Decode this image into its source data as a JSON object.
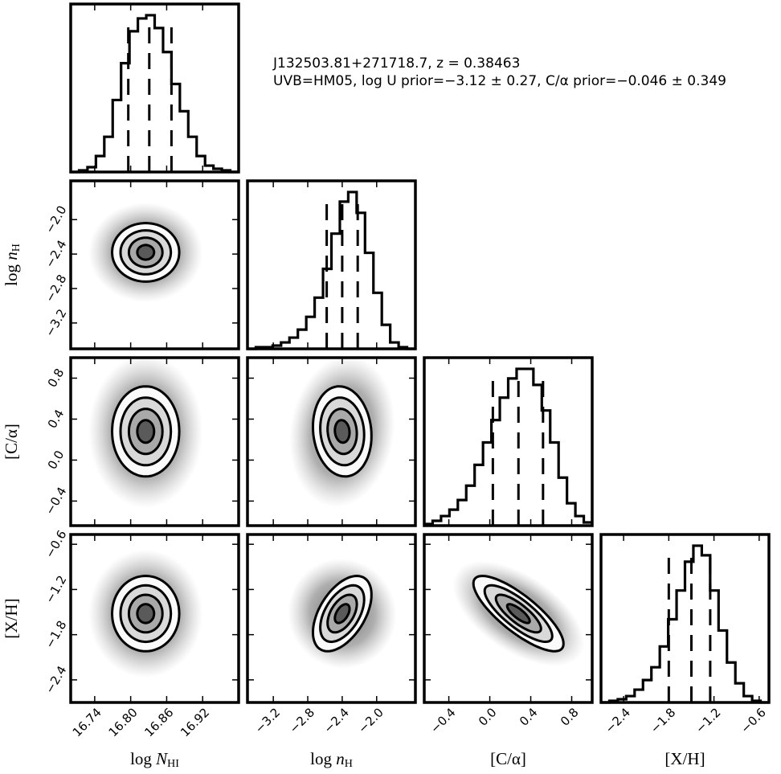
{
  "chart_data": {
    "type": "corner",
    "title_lines": [
      "J132503.81+271718.7, z = 0.38463",
      "UVB=HM05, log U prior=−3.12 ± 0.27, C/α prior=−0.046 ± 0.349"
    ],
    "variables": [
      {
        "label": {
          "prefix": "log ",
          "symbol": "N",
          "sub": "HI"
        },
        "lim": [
          16.7,
          16.98
        ],
        "ticks": [
          {
            "value": 16.74,
            "label": "16.74"
          },
          {
            "value": 16.8,
            "label": "16.80"
          },
          {
            "value": 16.86,
            "label": "16.86"
          },
          {
            "value": 16.92,
            "label": "16.92"
          }
        ],
        "hist": [
          0,
          1,
          3,
          10,
          22,
          45,
          68,
          88,
          96,
          98,
          90,
          75,
          55,
          38,
          22,
          10,
          4,
          2,
          1,
          0
        ],
        "quantiles": [
          16.796,
          16.831,
          16.868
        ]
      },
      {
        "label": {
          "prefix": "log ",
          "symbol": "n",
          "sub": "H"
        },
        "lim": [
          -3.5,
          -1.55
        ],
        "ticks": [
          {
            "value": -3.2,
            "label": "−3.2"
          },
          {
            "value": -2.8,
            "label": "−2.8"
          },
          {
            "value": -2.4,
            "label": "−2.4"
          },
          {
            "value": -2.0,
            "label": "−2.0"
          }
        ],
        "hist": [
          0,
          1,
          1,
          2,
          4,
          7,
          12,
          20,
          32,
          50,
          72,
          92,
          98,
          85,
          60,
          35,
          15,
          4,
          1,
          0
        ],
        "quantiles": [
          -2.58,
          -2.4,
          -2.22
        ]
      },
      {
        "label": {
          "prefix": "[C/α]",
          "symbol": "",
          "sub": ""
        },
        "lim": [
          -0.64,
          1.0
        ],
        "ticks": [
          {
            "value": -0.4,
            "label": "−0.4"
          },
          {
            "value": 0.0,
            "label": "0.0"
          },
          {
            "value": 0.4,
            "label": "0.4"
          },
          {
            "value": 0.8,
            "label": "0.8"
          }
        ],
        "hist": [
          1,
          3,
          6,
          10,
          16,
          25,
          38,
          52,
          66,
          80,
          92,
          98,
          98,
          88,
          72,
          52,
          30,
          14,
          6,
          2
        ],
        "quantiles": [
          0.03,
          0.28,
          0.52
        ]
      },
      {
        "label": {
          "prefix": "[X/H]",
          "symbol": "",
          "sub": ""
        },
        "lim": [
          -2.7,
          -0.47
        ],
        "ticks": [
          {
            "value": -2.4,
            "label": "−2.4"
          },
          {
            "value": -1.8,
            "label": "−1.8"
          },
          {
            "value": -1.2,
            "label": "−1.2"
          },
          {
            "value": -0.6,
            "label": "−0.6"
          }
        ],
        "hist": [
          0,
          1,
          2,
          4,
          8,
          14,
          22,
          35,
          52,
          70,
          88,
          98,
          92,
          70,
          45,
          25,
          12,
          4,
          1,
          0
        ],
        "quantiles": [
          -1.8,
          -1.5,
          -1.25
        ]
      }
    ],
    "hist_ylim": [
      0,
      105
    ],
    "contour_levels": [
      0.5,
      1,
      1.5,
      2
    ],
    "pairs": [
      {
        "x": 0,
        "y": 1,
        "center": [
          16.825,
          -2.38
        ],
        "sigma": [
          0.028,
          0.17
        ],
        "corr": 0
      },
      {
        "x": 0,
        "y": 2,
        "center": [
          16.825,
          0.28
        ],
        "sigma": [
          0.028,
          0.22
        ],
        "corr": 0
      },
      {
        "x": 1,
        "y": 2,
        "center": [
          -2.4,
          0.28
        ],
        "sigma": [
          0.17,
          0.22
        ],
        "corr": -0.1
      },
      {
        "x": 0,
        "y": 3,
        "center": [
          16.825,
          -1.52
        ],
        "sigma": [
          0.028,
          0.25
        ],
        "corr": 0
      },
      {
        "x": 1,
        "y": 3,
        "center": [
          -2.4,
          -1.52
        ],
        "sigma": [
          0.17,
          0.25
        ],
        "corr": 0.5
      },
      {
        "x": 2,
        "y": 3,
        "center": [
          0.28,
          -1.52
        ],
        "sigma": [
          0.22,
          0.25
        ],
        "corr": -0.8
      }
    ]
  }
}
